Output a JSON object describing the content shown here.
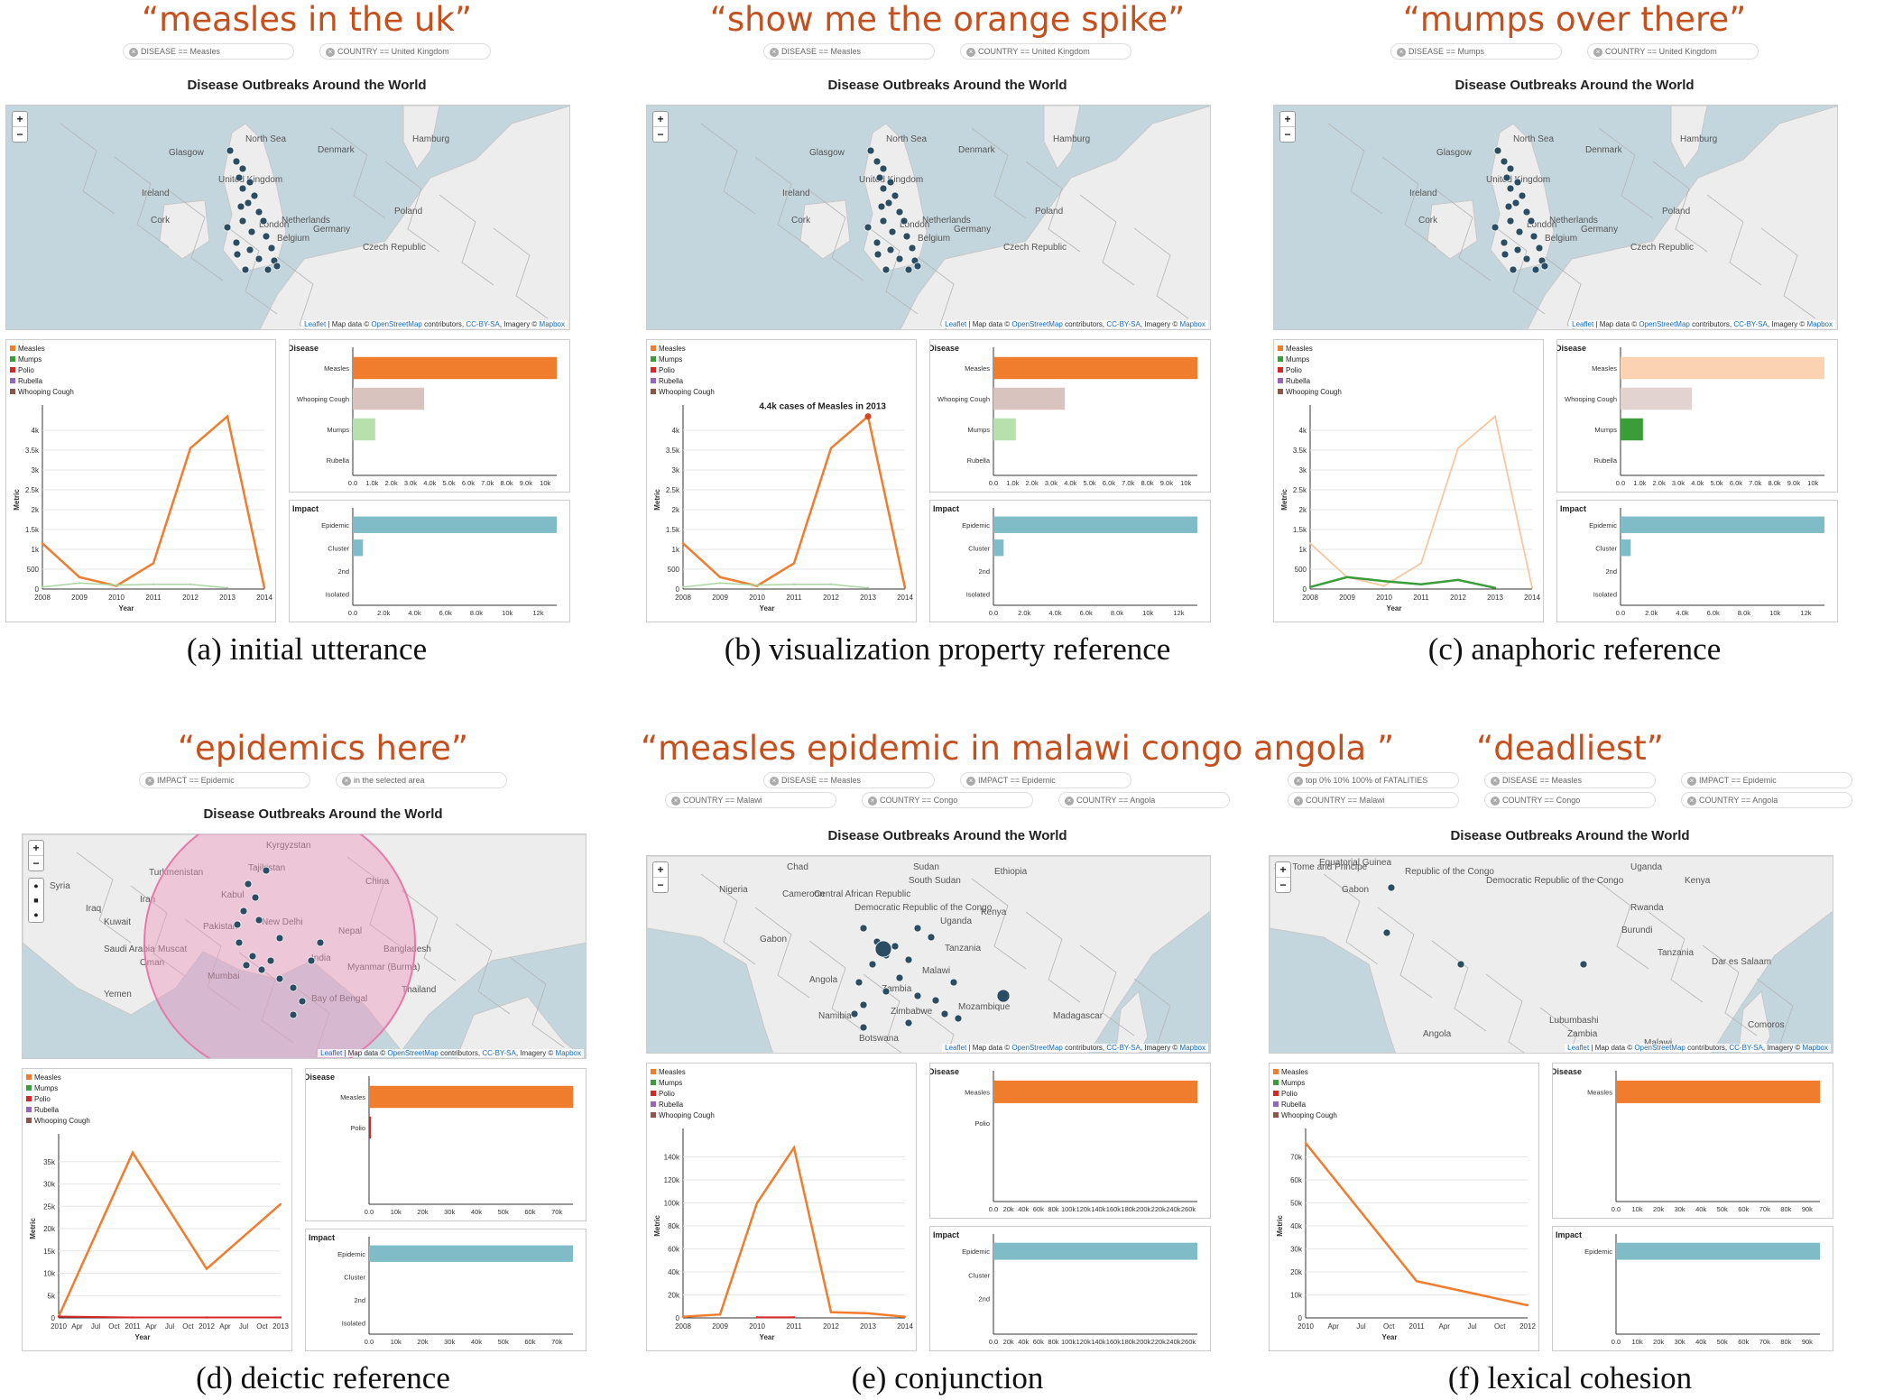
{
  "dashboard_title": "Disease Outbreaks Around the World",
  "map_attribution": {
    "leaflet": "Leaflet",
    "mid": " | Map data © ",
    "osm": "OpenStreetMap",
    "contrib": " contributors, ",
    "license": "CC-BY-SA",
    "imagery": ", Imagery © ",
    "mapbox": "Mapbox"
  },
  "zoom_in": "+",
  "zoom_out": "−",
  "legend_items": [
    {
      "label": "Measles",
      "color": "#f07c2e"
    },
    {
      "label": "Mumps",
      "color": "#3a9d3a"
    },
    {
      "label": "Polio",
      "color": "#d62728"
    },
    {
      "label": "Rubella",
      "color": "#9467bd"
    },
    {
      "label": "Whooping Cough",
      "color": "#8c564b"
    }
  ],
  "y_axis_label": "Metric",
  "x_axis_label": "Year",
  "disease_title": "Disease",
  "impact_title": "Impact",
  "colors": {
    "measles": "#f07c2e",
    "mumps": "#3a9d3a",
    "polio": "#d62728",
    "whooping": "#d8c3bf",
    "impact": "#7fbcc8",
    "utterance": "#c5501e",
    "point": "#2a4d63"
  },
  "panels": [
    {
      "id": "a",
      "utterance": "“measles in the uk”",
      "filters": [
        [
          "DISEASE == Measles",
          "COUNTRY == United Kingdom"
        ]
      ],
      "map_region": "europe",
      "map_labels": [
        "North Sea",
        "Denmark",
        "United Kingdom",
        "Ireland",
        "Netherlands",
        "Germany",
        "Poland",
        "Belgium",
        "Czech Republic",
        "Glasgow",
        "London",
        "Cork",
        "Hamburg"
      ],
      "caption": "(a)  initial utterance",
      "chart_data": [
        {
          "type": "line",
          "x": [
            "2008",
            "2009",
            "2010",
            "2011",
            "2012",
            "2013",
            "2014"
          ],
          "ylim": [
            0,
            4500
          ],
          "y_ticks": [
            "500",
            "1k",
            "1.5k",
            "2k",
            "2.5k",
            "3k",
            "3.5k",
            "4k"
          ],
          "series": [
            {
              "name": "Measles",
              "values": [
                1150,
                300,
                80,
                650,
                3550,
                4350,
                30
              ]
            },
            {
              "name": "Mumps",
              "values": [
                50,
                150,
                100,
                120,
                120,
                30,
                null
              ]
            }
          ],
          "annotation": ""
        },
        {
          "type": "bar",
          "title": "Disease",
          "categories": [
            "Measles",
            "Whooping Cough",
            "Mumps",
            "Rubella"
          ],
          "values": [
            10000,
            3500,
            1100,
            0
          ],
          "x_ticks": [
            "0.0",
            "1.0k",
            "2.0k",
            "3.0k",
            "4.0k",
            "5.0k",
            "6.0k",
            "7.0k",
            "8.0k",
            "9.0k",
            "10k"
          ]
        },
        {
          "type": "bar",
          "title": "Impact",
          "categories": [
            "Epidemic",
            "Cluster",
            "2nd",
            "Isolated"
          ],
          "values": [
            14000,
            700,
            0,
            0
          ],
          "x_ticks": [
            "0.0",
            "2.0k",
            "4.0k",
            "6.0k",
            "8.0k",
            "10k",
            "12k"
          ]
        }
      ]
    },
    {
      "id": "b",
      "utterance": "“show me the orange spike”",
      "filters": [
        [
          "DISEASE == Measles",
          "COUNTRY == United Kingdom"
        ]
      ],
      "map_region": "europe",
      "map_labels": [
        "North Sea",
        "Denmark",
        "United Kingdom",
        "Ireland",
        "Netherlands",
        "Germany",
        "Poland",
        "Belgium",
        "Czech Republic",
        "Glasgow",
        "London",
        "Cork",
        "Hamburg"
      ],
      "caption": "(b)  visualization property reference",
      "chart_data": [
        {
          "type": "line",
          "x": [
            "2008",
            "2009",
            "2010",
            "2011",
            "2012",
            "2013",
            "2014"
          ],
          "ylim": [
            0,
            4500
          ],
          "y_ticks": [
            "500",
            "1k",
            "1.5k",
            "2k",
            "2.5k",
            "3k",
            "3.5k",
            "4k"
          ],
          "series": [
            {
              "name": "Measles",
              "values": [
                1150,
                300,
                80,
                650,
                3550,
                4350,
                30
              ]
            },
            {
              "name": "Mumps",
              "values": [
                50,
                150,
                100,
                120,
                120,
                30,
                null
              ]
            }
          ],
          "annotation": "4.4k cases of Measles in 2013"
        },
        {
          "type": "bar",
          "title": "Disease",
          "categories": [
            "Measles",
            "Whooping Cough",
            "Mumps",
            "Rubella"
          ],
          "values": [
            10000,
            3500,
            1100,
            0
          ],
          "x_ticks": [
            "0.0",
            "1.0k",
            "2.0k",
            "3.0k",
            "4.0k",
            "5.0k",
            "6.0k",
            "7.0k",
            "8.0k",
            "9.0k",
            "10k"
          ]
        },
        {
          "type": "bar",
          "title": "Impact",
          "categories": [
            "Epidemic",
            "Cluster",
            "2nd",
            "Isolated"
          ],
          "values": [
            14000,
            700,
            0,
            0
          ],
          "x_ticks": [
            "0.0",
            "2.0k",
            "4.0k",
            "6.0k",
            "8.0k",
            "10k",
            "12k"
          ]
        }
      ]
    },
    {
      "id": "c",
      "utterance": "“mumps over there”",
      "filters": [
        [
          "DISEASE == Mumps",
          "COUNTRY == United Kingdom"
        ]
      ],
      "map_region": "europe",
      "map_labels": [
        "North Sea",
        "Denmark",
        "United Kingdom",
        "Ireland",
        "Netherlands",
        "Germany",
        "Poland",
        "Belgium",
        "Czech Republic",
        "Glasgow",
        "London",
        "Cork",
        "Hamburg"
      ],
      "caption": "(c)  anaphoric reference",
      "chart_data": [
        {
          "type": "line",
          "x": [
            "2008",
            "2009",
            "2010",
            "2011",
            "2012",
            "2013",
            "2014"
          ],
          "ylim": [
            0,
            4500
          ],
          "y_ticks": [
            "500",
            "1k",
            "1.5k",
            "2k",
            "2.5k",
            "3k",
            "3.5k",
            "4k"
          ],
          "series": [
            {
              "name": "Measles",
              "values": [
                1150,
                300,
                80,
                650,
                3550,
                4350,
                30
              ]
            },
            {
              "name": "Mumps",
              "values": [
                50,
                300,
                200,
                120,
                230,
                30,
                null
              ]
            }
          ],
          "annotation": ""
        },
        {
          "type": "bar",
          "title": "Disease",
          "categories": [
            "Measles",
            "Whooping Cough",
            "Mumps",
            "Rubella"
          ],
          "values": [
            10000,
            3500,
            1100,
            0
          ],
          "x_ticks": [
            "0.0",
            "1.0k",
            "2.0k",
            "3.0k",
            "4.0k",
            "5.0k",
            "6.0k",
            "7.0k",
            "8.0k",
            "9.0k",
            "10k"
          ]
        },
        {
          "type": "bar",
          "title": "Impact",
          "categories": [
            "Epidemic",
            "Cluster",
            "2nd",
            "Isolated"
          ],
          "values": [
            14000,
            700,
            0,
            0
          ],
          "x_ticks": [
            "0.0",
            "2.0k",
            "4.0k",
            "6.0k",
            "8.0k",
            "10k",
            "12k"
          ]
        }
      ]
    },
    {
      "id": "d",
      "utterance": "“epidemics here”",
      "filters": [
        [
          "IMPACT == Epidemic",
          "in the selected area"
        ]
      ],
      "map_region": "asia",
      "map_labels": [
        "Kyrgyzstan",
        "Turkmenistan",
        "Tajikistan",
        "Syria",
        "Iraq",
        "Iran",
        "Kabul",
        "Pakistan",
        "China",
        "Nepal",
        "Kuwait",
        "New Delhi",
        "Bangladesh",
        "Saudi Arabia",
        "India",
        "Oman",
        "Myanmar (Burma)",
        "Yemen",
        "Thailand",
        "Muscat",
        "Mumbai",
        "Bay of Bengal"
      ],
      "caption": "(d)  deictic reference",
      "chart_data": [
        {
          "type": "line",
          "x": [
            "2010",
            "Apr",
            "Jul",
            "Oct",
            "2011",
            "Apr",
            "Jul",
            "Oct",
            "2012",
            "Apr",
            "Jul",
            "Oct",
            "2013"
          ],
          "ylim": [
            0,
            40000
          ],
          "y_ticks": [
            "5k",
            "10k",
            "15k",
            "20k",
            "25k",
            "30k",
            "35k"
          ],
          "series": [
            {
              "name": "Measles",
              "values": [
                300,
                null,
                null,
                null,
                37000,
                null,
                null,
                null,
                11000,
                null,
                null,
                null,
                25500
              ]
            },
            {
              "name": "Polio",
              "values": [
                300,
                null,
                null,
                null,
                100,
                null,
                null,
                null,
                100,
                null,
                null,
                null,
                100
              ]
            }
          ],
          "annotation": ""
        },
        {
          "type": "bar",
          "title": "Disease",
          "categories": [
            "Measles",
            "Polio"
          ],
          "values": [
            74000,
            600
          ],
          "x_ticks": [
            "0.0",
            "10k",
            "20k",
            "30k",
            "40k",
            "50k",
            "60k",
            "70k"
          ]
        },
        {
          "type": "bar",
          "title": "Impact",
          "categories": [
            "Epidemic",
            "Cluster",
            "2nd",
            "Isolated"
          ],
          "values": [
            74000,
            0,
            0,
            0
          ],
          "x_ticks": [
            "0.0",
            "10k",
            "20k",
            "30k",
            "40k",
            "50k",
            "60k",
            "70k"
          ]
        }
      ]
    },
    {
      "id": "e",
      "utterance": "“measles epidemic in malawi congo angola ”",
      "filters": [
        [
          "DISEASE == Measles",
          "IMPACT == Epidemic"
        ],
        [
          "COUNTRY == Malawi",
          "COUNTRY == Congo",
          "COUNTRY == Angola"
        ]
      ],
      "map_region": "africa",
      "map_labels": [
        "Chad",
        "Sudan",
        "Ethiopia",
        "Nigeria",
        "Cameroon",
        "Central African Republic",
        "Democratic Republic of the Congo",
        "South Sudan",
        "Uganda",
        "Kenya",
        "Gabon",
        "Tanzania",
        "Angola",
        "Zambia",
        "Malawi",
        "Mozambique",
        "Zimbabwe",
        "Namibia",
        "Botswana",
        "Madagascar"
      ],
      "caption": "(e)  conjunction",
      "chart_data": [
        {
          "type": "line",
          "x": [
            "2008",
            "2009",
            "2010",
            "2011",
            "2012",
            "2013",
            "2014"
          ],
          "ylim": [
            0,
            160000
          ],
          "y_ticks": [
            "20k",
            "40k",
            "60k",
            "80k",
            "100k",
            "120k",
            "140k"
          ],
          "series": [
            {
              "name": "Measles",
              "values": [
                1000,
                3000,
                100000,
                148000,
                5000,
                4000,
                1000
              ]
            },
            {
              "name": "Polio",
              "values": [
                null,
                null,
                500,
                500,
                null,
                null,
                null
              ]
            }
          ],
          "annotation": ""
        },
        {
          "type": "bar",
          "title": "Disease",
          "categories": [
            "Measles",
            "Polio"
          ],
          "values": [
            280000,
            0
          ],
          "x_ticks": [
            "0.0",
            "20k",
            "40k",
            "60k",
            "80k",
            "100k",
            "120k",
            "140k",
            "160k",
            "180k",
            "200k",
            "220k",
            "240k",
            "260k"
          ]
        },
        {
          "type": "bar",
          "title": "Impact",
          "categories": [
            "Epidemic",
            "Cluster",
            "2nd"
          ],
          "values": [
            280000,
            0,
            0
          ],
          "x_ticks": [
            "0.0",
            "20k",
            "40k",
            "60k",
            "80k",
            "100k",
            "120k",
            "140k",
            "160k",
            "180k",
            "200k",
            "220k",
            "240k",
            "260k"
          ]
        }
      ]
    },
    {
      "id": "f",
      "utterance": "“deadliest”",
      "filters": [
        [
          "top 0% 10% 100% of FATALITIES",
          "DISEASE == Measles",
          "IMPACT == Epidemic"
        ],
        [
          "COUNTRY == Malawi",
          "COUNTRY == Congo",
          "COUNTRY == Angola"
        ]
      ],
      "map_region": "central-africa",
      "map_labels": [
        "Sao Tome and Principe",
        "Equatorial Guinea",
        "Gabon",
        "Republic of the Congo",
        "Democratic Republic of the Congo",
        "Uganda",
        "Kenya",
        "Rwanda",
        "Burundi",
        "Tanzania",
        "Dar es Salaam",
        "Angola",
        "Zambia",
        "Malawi",
        "Comoros",
        "Lubumbashi"
      ],
      "caption": "(f)  lexical cohesion",
      "chart_data": [
        {
          "type": "line",
          "x": [
            "2010",
            "Apr",
            "Jul",
            "Oct",
            "2011",
            "Apr",
            "Jul",
            "Oct",
            "2012"
          ],
          "ylim": [
            0,
            80000
          ],
          "y_ticks": [
            "10k",
            "20k",
            "30k",
            "40k",
            "50k",
            "60k",
            "70k"
          ],
          "series": [
            {
              "name": "Measles",
              "values": [
                76000,
                null,
                null,
                null,
                16000,
                null,
                null,
                null,
                5500
              ]
            }
          ],
          "annotation": ""
        },
        {
          "type": "bar",
          "title": "Disease",
          "categories": [
            "Measles"
          ],
          "values": [
            97000
          ],
          "x_ticks": [
            "0.0",
            "10k",
            "20k",
            "30k",
            "40k",
            "50k",
            "60k",
            "70k",
            "80k",
            "90k"
          ]
        },
        {
          "type": "bar",
          "title": "Impact",
          "categories": [
            "Epidemic"
          ],
          "values": [
            97000
          ],
          "x_ticks": [
            "0.0",
            "10k",
            "20k",
            "30k",
            "40k",
            "50k",
            "60k",
            "70k",
            "80k",
            "90k"
          ]
        }
      ]
    }
  ]
}
